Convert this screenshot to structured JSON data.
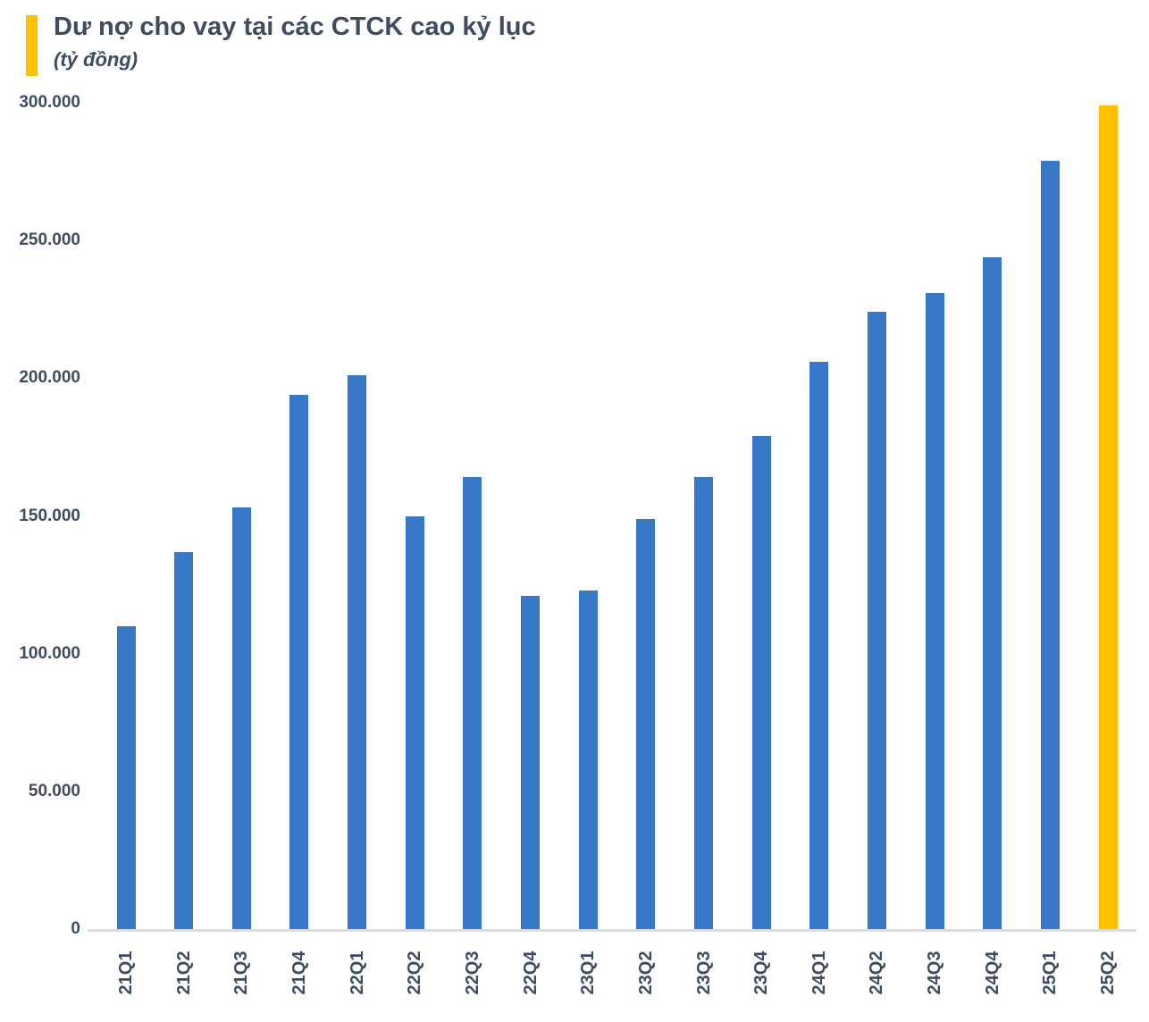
{
  "header": {
    "title": "Dư nợ cho vay tại các CTCK cao kỷ lục",
    "subtitle": "(tỷ đồng)"
  },
  "colors": {
    "accent": "#FFC000",
    "bar": "#3778C8",
    "highlight_bar": "#FFC000",
    "text": "#3E4C61",
    "axis_line": "#DCDCDC"
  },
  "chart_data": {
    "type": "bar",
    "title": "Dư nợ cho vay tại các CTCK cao kỷ lục",
    "subtitle_unit": "(tỷ đồng)",
    "categories": [
      "21Q1",
      "21Q2",
      "21Q3",
      "21Q4",
      "22Q1",
      "22Q2",
      "22Q3",
      "22Q4",
      "23Q1",
      "23Q2",
      "23Q3",
      "23Q4",
      "24Q1",
      "24Q2",
      "24Q3",
      "24Q4",
      "25Q1",
      "25Q2"
    ],
    "values": [
      110000,
      137000,
      153000,
      194000,
      201000,
      150000,
      164000,
      121000,
      123000,
      149000,
      164000,
      179000,
      206000,
      224000,
      231000,
      244000,
      279000,
      299000
    ],
    "highlight_index": 17,
    "highlight_category": "25Q2",
    "ylim": [
      0,
      300000
    ],
    "y_ticks": [
      {
        "value": 0,
        "label": "0"
      },
      {
        "value": 50000,
        "label": "50.000"
      },
      {
        "value": 100000,
        "label": "100.000"
      },
      {
        "value": 150000,
        "label": "150.000"
      },
      {
        "value": 200000,
        "label": "200.000"
      },
      {
        "value": 250000,
        "label": "250.000"
      },
      {
        "value": 300000,
        "label": "300.000"
      }
    ],
    "grid": false,
    "legend": false,
    "xlabel": "",
    "ylabel": ""
  }
}
